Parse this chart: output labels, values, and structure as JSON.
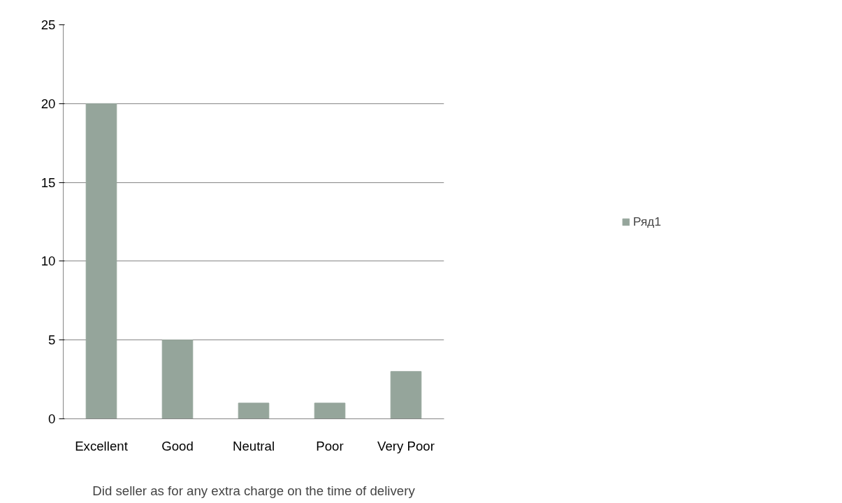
{
  "chart_data": {
    "type": "bar",
    "categories": [
      "Excellent",
      "Good",
      "Neutral",
      "Poor",
      "Very Poor"
    ],
    "series": [
      {
        "name": "Ряд1",
        "color": "#95a59b",
        "values": [
          20,
          5,
          1,
          1,
          3
        ]
      }
    ],
    "xlabel": "Did seller as for any extra charge on the time of delivery",
    "ylim": [
      0,
      25
    ],
    "yticks": [
      0,
      5,
      10,
      15,
      20,
      25
    ],
    "grid": "y",
    "legend": "right"
  }
}
